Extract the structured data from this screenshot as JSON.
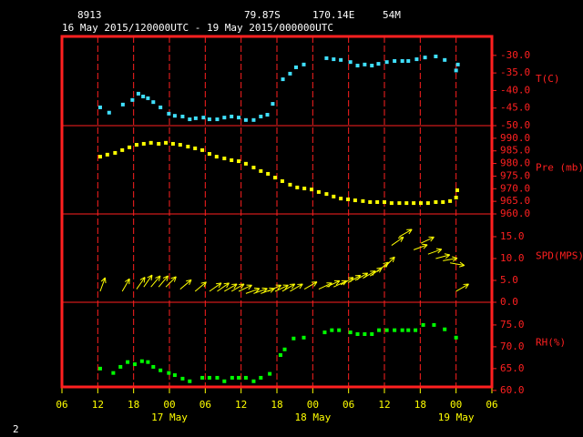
{
  "header": {
    "station": "8913",
    "lat": "79.87S",
    "lon": "170.14E",
    "elev": "54M",
    "period": "16 May 2015/120000UTC - 19 May 2015/000000UTC",
    "page": "2"
  },
  "chart_data": [
    {
      "type": "scatter",
      "label": "T(C)",
      "color": "#40e0ff",
      "ylim": [
        -50,
        -24.6
      ],
      "yticks": [
        {
          "value": -30,
          "label": "-30.0"
        },
        {
          "value": -35,
          "label": "-35.0"
        },
        {
          "value": -40,
          "label": "-40.0"
        },
        {
          "value": -45,
          "label": "-45.0"
        },
        {
          "value": -50,
          "label": "-50.0"
        }
      ],
      "x": [
        6.4,
        7.9,
        10.2,
        11.8,
        12.8,
        13.6,
        14.4,
        15.3,
        16.5,
        17.9,
        18.9,
        20.2,
        21.4,
        22.4,
        23.7,
        24.7,
        26.0,
        27.2,
        28.4,
        29.6,
        30.8,
        32.1,
        33.3,
        34.4,
        35.3,
        37.0,
        38.2,
        39.2,
        40.5,
        44.3,
        45.5,
        46.7,
        48.3,
        49.5,
        50.7,
        51.9,
        53.0,
        54.4,
        55.7,
        57.0,
        58.0,
        59.4,
        60.8,
        62.6,
        64.1,
        66.0,
        66.3
      ],
      "values": [
        -44.8,
        -46.3,
        -44.0,
        -42.7,
        -40.9,
        -41.7,
        -42.2,
        -43.3,
        -44.8,
        -46.6,
        -47.2,
        -47.4,
        -48.2,
        -47.9,
        -47.7,
        -48.2,
        -48.2,
        -47.7,
        -47.4,
        -47.7,
        -48.4,
        -48.4,
        -47.4,
        -46.9,
        -43.8,
        -36.8,
        -35.2,
        -33.4,
        -32.6,
        -30.8,
        -31.1,
        -31.3,
        -31.9,
        -32.9,
        -32.6,
        -32.9,
        -32.4,
        -31.9,
        -31.6,
        -31.6,
        -31.6,
        -31.1,
        -30.6,
        -30.3,
        -31.3,
        -34.3,
        -32.6
      ]
    },
    {
      "type": "scatter",
      "label": "Pre (mb)",
      "color": "#ffff00",
      "ylim": [
        960,
        995
      ],
      "yticks": [
        {
          "value": 990,
          "label": "990.0"
        },
        {
          "value": 985,
          "label": "985.0"
        },
        {
          "value": 980,
          "label": "980.0"
        },
        {
          "value": 975,
          "label": "975.0"
        },
        {
          "value": 970,
          "label": "970.0"
        },
        {
          "value": 965,
          "label": "965.0"
        },
        {
          "value": 960,
          "label": "960.0"
        }
      ],
      "x": [
        6.4,
        7.6,
        8.9,
        10.1,
        11.3,
        12.5,
        13.7,
        14.9,
        16.2,
        17.4,
        18.6,
        19.8,
        21.1,
        22.3,
        23.5,
        24.7,
        25.9,
        27.2,
        28.4,
        29.6,
        30.8,
        32.1,
        33.3,
        34.5,
        35.7,
        36.9,
        38.2,
        39.4,
        40.6,
        41.8,
        43.0,
        44.3,
        45.5,
        46.7,
        47.9,
        49.1,
        50.4,
        51.6,
        52.8,
        54.0,
        55.2,
        56.5,
        57.7,
        58.9,
        60.1,
        61.3,
        62.6,
        63.8,
        65.0,
        66.0,
        66.2
      ],
      "values": [
        982.7,
        983.5,
        984.2,
        985.3,
        986.4,
        987.4,
        987.8,
        988.2,
        987.8,
        988.2,
        987.8,
        987.4,
        986.7,
        986.0,
        985.3,
        983.8,
        982.7,
        982.0,
        981.3,
        980.9,
        979.9,
        978.4,
        977.0,
        975.9,
        974.4,
        973.0,
        971.6,
        970.5,
        970.1,
        969.7,
        968.7,
        967.9,
        966.9,
        966.1,
        965.8,
        965.4,
        965.1,
        964.7,
        964.7,
        964.7,
        964.3,
        964.3,
        964.3,
        964.3,
        964.3,
        964.3,
        964.7,
        964.7,
        965.1,
        966.5,
        969.4
      ]
    },
    {
      "type": "quiver",
      "label": "SPD(MPS)",
      "color": "#ffff00",
      "ylim": [
        0,
        20.2
      ],
      "yticks": [
        {
          "value": 15,
          "label": "15.0"
        },
        {
          "value": 10,
          "label": "10.0"
        },
        {
          "value": 5,
          "label": "5.0"
        },
        {
          "value": 0,
          "label": "0.0"
        }
      ],
      "x": [
        6.4,
        10.1,
        12.5,
        13.7,
        14.9,
        16.2,
        17.4,
        19.8,
        22.3,
        24.7,
        26.0,
        27.2,
        28.4,
        29.6,
        30.8,
        32.1,
        33.3,
        34.5,
        35.7,
        36.9,
        38.2,
        40.6,
        43.0,
        44.3,
        45.5,
        46.7,
        47.9,
        49.1,
        50.4,
        51.6,
        52.8,
        54.0,
        55.2,
        56.5,
        58.9,
        60.1,
        61.3,
        62.6,
        63.8,
        65.0,
        66.0
      ],
      "values": [
        2.5,
        2.5,
        3,
        3.5,
        3.5,
        3.5,
        3.5,
        3,
        2.5,
        2.5,
        2.5,
        2.5,
        2.5,
        2.5,
        2,
        2,
        2,
        2.5,
        2.5,
        2.5,
        2.5,
        3,
        3,
        3.5,
        3.5,
        4,
        4.5,
        5,
        5.5,
        6,
        7,
        8,
        13,
        15,
        12,
        13.5,
        11,
        10,
        9.5,
        9,
        2.5
      ],
      "angles": [
        70,
        60,
        55,
        55,
        50,
        50,
        45,
        40,
        40,
        35,
        35,
        30,
        30,
        25,
        20,
        20,
        20,
        25,
        25,
        30,
        30,
        30,
        25,
        25,
        25,
        30,
        30,
        30,
        30,
        35,
        40,
        45,
        35,
        30,
        20,
        25,
        20,
        15,
        10,
        -10,
        30
      ]
    },
    {
      "type": "scatter",
      "label": "RH(%)",
      "color": "#00ff00",
      "ylim": [
        60.8,
        80.2
      ],
      "yticks": [
        {
          "value": 75,
          "label": "75.0"
        },
        {
          "value": 70,
          "label": "70.0"
        },
        {
          "value": 65,
          "label": "65.0"
        },
        {
          "value": 60,
          "label": "60.0"
        }
      ],
      "x": [
        6.4,
        8.6,
        9.8,
        11.0,
        12.2,
        13.4,
        14.4,
        15.3,
        16.5,
        17.9,
        18.9,
        20.2,
        21.4,
        23.5,
        24.7,
        26.0,
        27.2,
        28.5,
        29.6,
        30.8,
        32.1,
        33.3,
        34.8,
        36.6,
        37.3,
        38.8,
        40.5,
        44.0,
        45.2,
        46.4,
        48.3,
        49.5,
        50.7,
        51.9,
        53.1,
        54.4,
        55.7,
        57.0,
        58.0,
        59.2,
        60.5,
        62.3,
        64.1,
        66.0
      ],
      "values": [
        65.0,
        64.0,
        65.4,
        66.5,
        66.0,
        66.7,
        66.5,
        65.4,
        64.6,
        64.0,
        63.5,
        62.7,
        62.1,
        62.9,
        62.9,
        62.9,
        62.1,
        62.9,
        62.9,
        62.9,
        62.1,
        62.9,
        63.8,
        68.1,
        69.4,
        71.9,
        72.1,
        73.3,
        73.8,
        73.8,
        73.3,
        72.9,
        72.9,
        72.9,
        73.8,
        73.8,
        73.8,
        73.8,
        73.8,
        73.8,
        75.0,
        75.0,
        74.0,
        72.1
      ],
      "xlim": [
        0,
        72
      ],
      "xticks": [
        {
          "value": 0,
          "label": "06"
        },
        {
          "value": 6,
          "label": "12"
        },
        {
          "value": 12,
          "label": "18"
        },
        {
          "value": 18,
          "label": "00"
        },
        {
          "value": 24,
          "label": "06"
        },
        {
          "value": 30,
          "label": "12"
        },
        {
          "value": 36,
          "label": "18"
        },
        {
          "value": 42,
          "label": "00"
        },
        {
          "value": 48,
          "label": "06"
        },
        {
          "value": 54,
          "label": "12"
        },
        {
          "value": 60,
          "label": "18"
        },
        {
          "value": 66,
          "label": "00"
        },
        {
          "value": 72,
          "label": "06"
        }
      ],
      "day_labels": [
        {
          "value": 18,
          "label": "17 May"
        },
        {
          "value": 42,
          "label": "18 May"
        },
        {
          "value": 66,
          "label": "19 May"
        }
      ]
    }
  ]
}
